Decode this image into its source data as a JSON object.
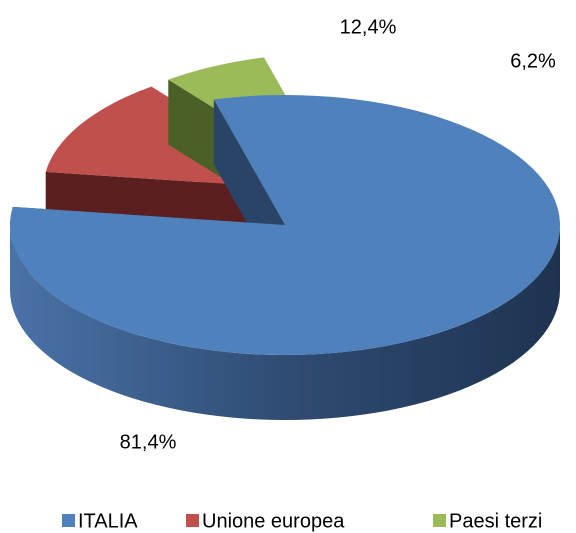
{
  "chart_data": {
    "type": "pie",
    "categories": [
      "ITALIA",
      "Unione europea",
      "Paesi terzi"
    ],
    "values": [
      81.4,
      12.4,
      6.2
    ],
    "value_labels": [
      "81,4%",
      "12,4%",
      "6,2%"
    ],
    "colors": [
      "#4f81bd",
      "#c0504d",
      "#9bbb59"
    ],
    "legend": "bottom"
  }
}
